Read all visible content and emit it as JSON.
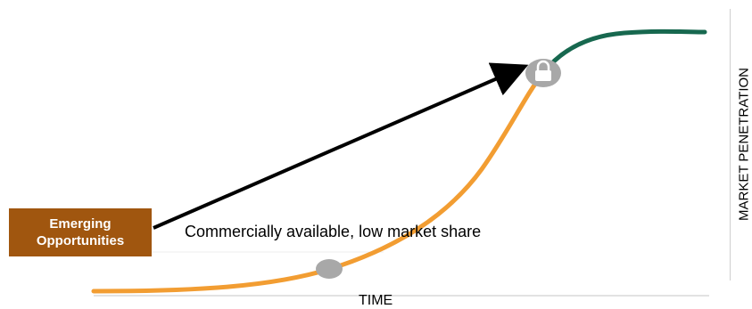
{
  "badge": {
    "line1": "Emerging",
    "line2": "Opportunities"
  },
  "caption": "Commercially available, low market share",
  "axes": {
    "x_label": "TIME",
    "y_label": "MARKET PENETRATION"
  },
  "colors": {
    "curve_early": "#f29d32",
    "curve_mature": "#17684f",
    "badge_bg": "#a0560f",
    "marker_gray": "#a8a8a8",
    "arrow": "#000000"
  },
  "icons": {
    "upper_marker": "lock-icon",
    "lower_marker": "dot-marker"
  }
}
